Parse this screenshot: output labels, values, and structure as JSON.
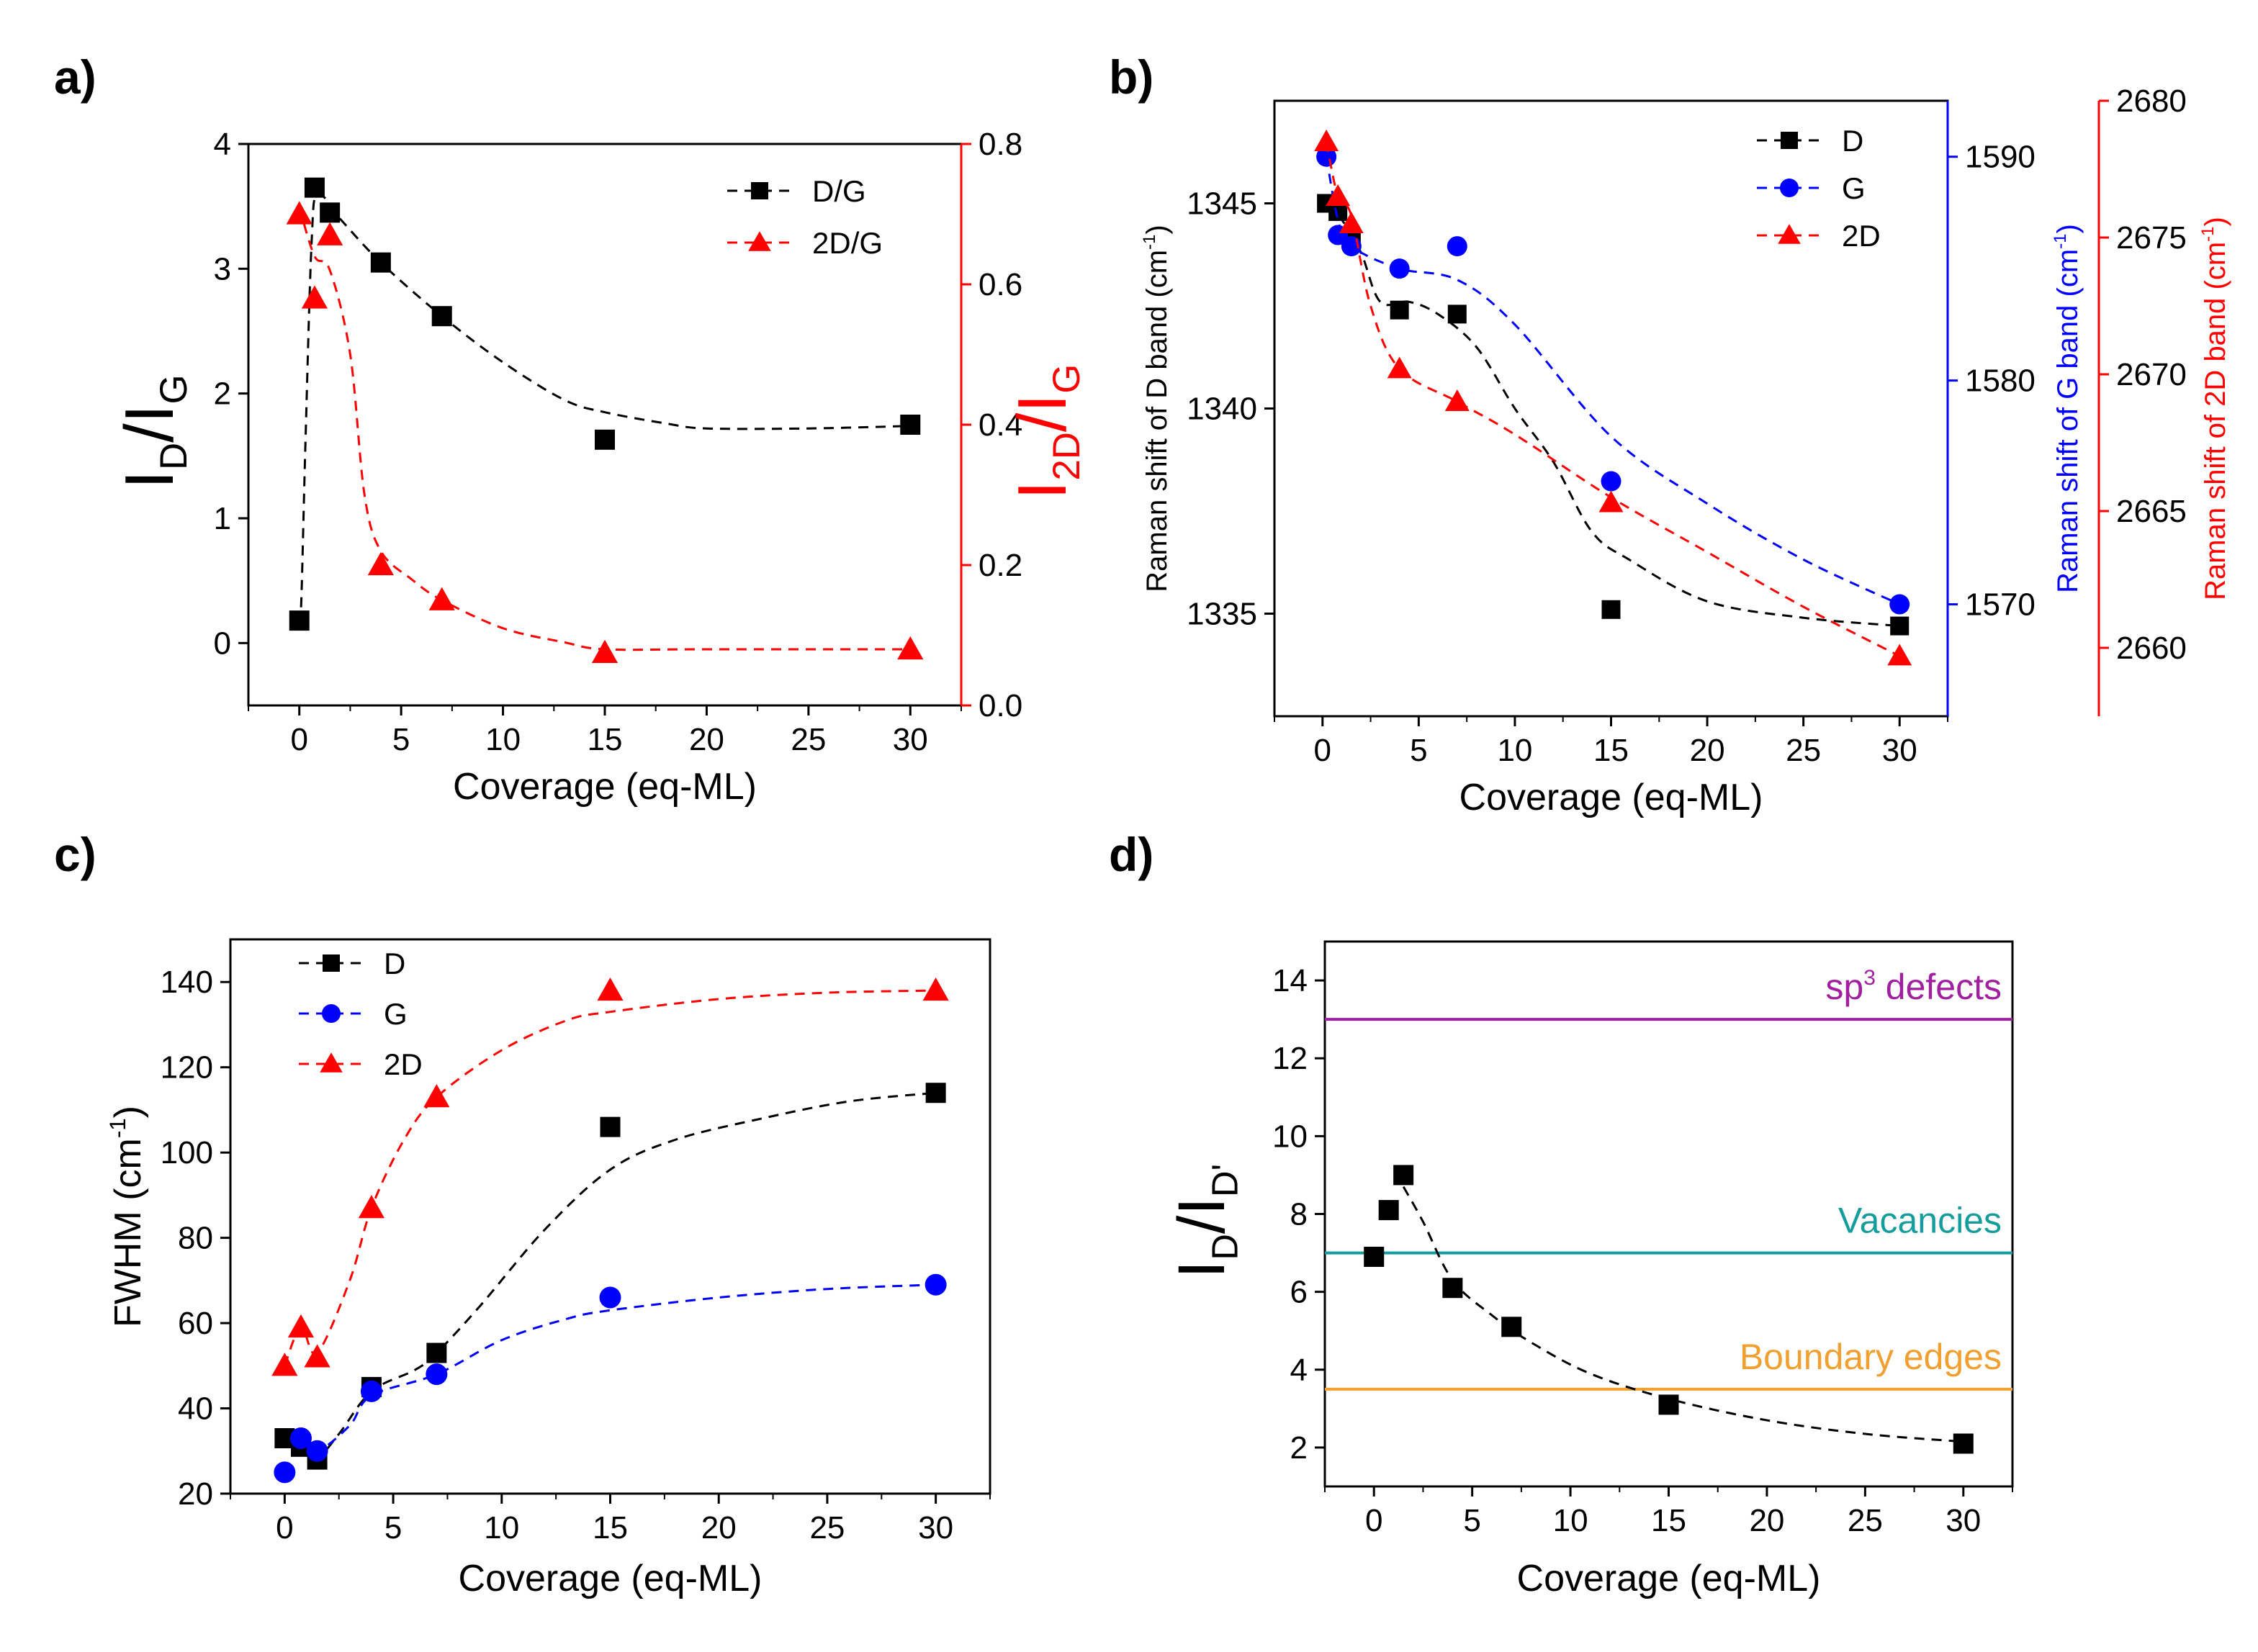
{
  "chart_data": [
    {
      "panel": "a)",
      "type": "scatter",
      "xlabel": "Coverage (eq-ML)",
      "xlim": [
        -2.5,
        32.5
      ],
      "xticks": [
        0,
        5,
        10,
        15,
        20,
        25,
        30
      ],
      "ylabel": {
        "main": "I",
        "sub1": "D",
        "mid": "/I",
        "sub2": "G"
      },
      "ylim": [
        -0.5,
        4.0
      ],
      "yticks": [
        "0",
        "1",
        "2",
        "3",
        "4"
      ],
      "y2label": {
        "main": "I",
        "sub1": "2D",
        "mid": "/I",
        "sub2": "G"
      },
      "y2lim": [
        0.0,
        0.8
      ],
      "y2ticks": [
        "0.0",
        "0.2",
        "0.4",
        "0.6",
        "0.8"
      ],
      "legend_position": "top-right",
      "series": [
        {
          "name": "D/G",
          "axis": "left",
          "color": "#000000",
          "marker": "square",
          "points": [
            [
              0,
              0.18
            ],
            [
              0.75,
              3.65
            ],
            [
              1.5,
              3.45
            ],
            [
              4,
              3.05
            ],
            [
              7,
              2.62
            ],
            [
              15,
              1.63
            ],
            [
              30,
              1.75
            ]
          ],
          "fit": [
            [
              0,
              0.15
            ],
            [
              0.1,
              0.35
            ],
            [
              0.3,
              1.6
            ],
            [
              0.6,
              3.2
            ],
            [
              0.9,
              3.6
            ],
            [
              2,
              3.4
            ],
            [
              4,
              3.05
            ],
            [
              7,
              2.62
            ],
            [
              10,
              2.25
            ],
            [
              13,
              1.95
            ],
            [
              15,
              1.85
            ],
            [
              18,
              1.76
            ],
            [
              20,
              1.72
            ],
            [
              25,
              1.72
            ],
            [
              30,
              1.74
            ]
          ]
        },
        {
          "name": "2D/G",
          "axis": "right",
          "color": "#ff0000",
          "marker": "triangle",
          "points": [
            [
              0,
              0.7
            ],
            [
              0.75,
              0.58
            ],
            [
              1.5,
              0.67
            ],
            [
              4,
              0.2
            ],
            [
              7,
              0.15
            ],
            [
              15,
              0.075
            ],
            [
              30,
              0.08
            ]
          ],
          "fit": [
            [
              0,
              0.71
            ],
            [
              0.75,
              0.64
            ],
            [
              1.5,
              0.62
            ],
            [
              2.5,
              0.5
            ],
            [
              3.2,
              0.3
            ],
            [
              4,
              0.22
            ],
            [
              5.5,
              0.18
            ],
            [
              7,
              0.15
            ],
            [
              10,
              0.11
            ],
            [
              13,
              0.09
            ],
            [
              15,
              0.08
            ],
            [
              20,
              0.08
            ],
            [
              30,
              0.08
            ]
          ]
        }
      ]
    },
    {
      "panel": "b)",
      "type": "scatter",
      "xlabel": "Coverage (eq-ML)",
      "xlim": [
        -2.5,
        32.5
      ],
      "xticks": [
        0,
        5,
        10,
        15,
        20,
        25,
        30
      ],
      "ylabel": "Raman shift of D band (cm",
      "ylim": [
        1332.5,
        1347.5
      ],
      "yticks": [
        "1335",
        "1340",
        "1345"
      ],
      "y2label": "Raman shift of G band (cm",
      "y2lim": [
        1565,
        1592.5
      ],
      "y2ticks": [
        "1570",
        "1580",
        "1590"
      ],
      "y3label": "Raman shift of 2D band (cm",
      "y3lim": [
        2657.5,
        2680
      ],
      "y3ticks": [
        "2660",
        "2665",
        "2670",
        "2675",
        "2680"
      ],
      "unit_sup": "-1",
      "label_close": ")",
      "legend_position": "top-right",
      "series": [
        {
          "name": "D",
          "axis": "left",
          "color": "#000000",
          "marker": "square",
          "points": [
            [
              0.2,
              1345.0
            ],
            [
              0.8,
              1344.8
            ],
            [
              1.5,
              1344.1
            ],
            [
              4,
              1342.4
            ],
            [
              7,
              1342.3
            ],
            [
              15,
              1335.1
            ],
            [
              30,
              1334.7
            ]
          ],
          "fit": [
            [
              0.2,
              1345.0
            ],
            [
              1,
              1344.6
            ],
            [
              2,
              1343.8
            ],
            [
              3,
              1342.6
            ],
            [
              4.5,
              1342.6
            ],
            [
              6,
              1342.3
            ],
            [
              8,
              1341.5
            ],
            [
              10,
              1340.0
            ],
            [
              12,
              1338.7
            ],
            [
              14,
              1337.0
            ],
            [
              16,
              1336.3
            ],
            [
              20,
              1335.3
            ],
            [
              25,
              1334.9
            ],
            [
              30,
              1334.7
            ]
          ]
        },
        {
          "name": "G",
          "axis": "right",
          "color": "#0000ff",
          "marker": "circle",
          "points": [
            [
              0.2,
              1590.0
            ],
            [
              0.8,
              1586.5
            ],
            [
              1.5,
              1586.0
            ],
            [
              4,
              1585.0
            ],
            [
              7,
              1586.0
            ],
            [
              15,
              1575.5
            ],
            [
              30,
              1570.0
            ]
          ],
          "fit": [
            [
              0.2,
              1590.0
            ],
            [
              0.8,
              1587.2
            ],
            [
              1.5,
              1586.0
            ],
            [
              4,
              1585.0
            ],
            [
              7,
              1584.5
            ],
            [
              10,
              1582.5
            ],
            [
              15,
              1577.5
            ],
            [
              20,
              1574.5
            ],
            [
              25,
              1572.0
            ],
            [
              30,
              1570.0
            ]
          ]
        },
        {
          "name": "2D",
          "axis": "third",
          "color": "#ff0000",
          "marker": "triangle",
          "points": [
            [
              0.2,
              2678.5
            ],
            [
              0.8,
              2676.5
            ],
            [
              1.5,
              2675.5
            ],
            [
              4,
              2670.2
            ],
            [
              7,
              2669.0
            ],
            [
              15,
              2665.3
            ],
            [
              30,
              2659.7
            ]
          ],
          "fit": [
            [
              0.2,
              2678.5
            ],
            [
              0.8,
              2676.5
            ],
            [
              1.5,
              2675.8
            ],
            [
              2.5,
              2672.5
            ],
            [
              4,
              2670.2
            ],
            [
              7,
              2669.0
            ],
            [
              10,
              2667.8
            ],
            [
              15,
              2665.5
            ],
            [
              20,
              2663.5
            ],
            [
              25,
              2661.5
            ],
            [
              30,
              2659.7
            ]
          ]
        }
      ]
    },
    {
      "panel": "c)",
      "type": "scatter",
      "xlabel": "Coverage (eq-ML)",
      "xlim": [
        -2.5,
        32.5
      ],
      "xticks": [
        0,
        5,
        10,
        15,
        20,
        25,
        30
      ],
      "ylabel": "FWHM (cm",
      "unit_sup": "-1",
      "label_close": ")",
      "ylim": [
        20,
        150
      ],
      "yticks": [
        "20",
        "40",
        "60",
        "80",
        "100",
        "120",
        "140"
      ],
      "legend_position": "top-left",
      "series": [
        {
          "name": "D",
          "color": "#000000",
          "marker": "square",
          "points": [
            [
              0,
              33
            ],
            [
              0.75,
              31
            ],
            [
              1.5,
              28
            ],
            [
              4,
              45
            ],
            [
              7,
              53
            ],
            [
              15,
              106
            ],
            [
              30,
              114
            ]
          ],
          "fit": [
            [
              0,
              33
            ],
            [
              0.75,
              31
            ],
            [
              1.5,
              28.5
            ],
            [
              2.5,
              34
            ],
            [
              4,
              44
            ],
            [
              6,
              49
            ],
            [
              7,
              53
            ],
            [
              9,
              64
            ],
            [
              12,
              82
            ],
            [
              15,
              96
            ],
            [
              18,
              103
            ],
            [
              22,
              108
            ],
            [
              26,
              112
            ],
            [
              30,
              114
            ]
          ]
        },
        {
          "name": "G",
          "color": "#0000ff",
          "marker": "circle",
          "points": [
            [
              0,
              25
            ],
            [
              0.75,
              33
            ],
            [
              1.5,
              30
            ],
            [
              4,
              44
            ],
            [
              7,
              48
            ],
            [
              15,
              66
            ],
            [
              30,
              69
            ]
          ],
          "fit": [
            [
              0.75,
              33
            ],
            [
              1.5,
              30
            ],
            [
              3,
              36
            ],
            [
              4,
              43
            ],
            [
              7,
              48
            ],
            [
              10,
              56
            ],
            [
              13,
              61
            ],
            [
              15,
              63
            ],
            [
              20,
              66
            ],
            [
              25,
              68
            ],
            [
              30,
              69
            ]
          ]
        },
        {
          "name": "2D",
          "color": "#ff0000",
          "marker": "triangle",
          "points": [
            [
              0,
              50
            ],
            [
              0.75,
              59
            ],
            [
              1.5,
              52
            ],
            [
              4,
              87
            ],
            [
              7,
              113
            ],
            [
              15,
              138
            ],
            [
              30,
              138
            ]
          ],
          "fit": [
            [
              0,
              50
            ],
            [
              0.75,
              59
            ],
            [
              1.5,
              53
            ],
            [
              3,
              70
            ],
            [
              4,
              87
            ],
            [
              5.5,
              103
            ],
            [
              7,
              113
            ],
            [
              10,
              124
            ],
            [
              13,
              131
            ],
            [
              15,
              133
            ],
            [
              20,
              136
            ],
            [
              25,
              137.5
            ],
            [
              30,
              138
            ]
          ]
        }
      ]
    },
    {
      "panel": "d)",
      "type": "scatter",
      "xlabel": "Coverage (eq-ML)",
      "xlim": [
        -2.5,
        32.5
      ],
      "xticks": [
        0,
        5,
        10,
        15,
        20,
        25,
        30
      ],
      "ylabel": {
        "main": "I",
        "sub1": "D",
        "mid": "/I",
        "sub2": "D'"
      },
      "ylim": [
        1.0,
        15.0
      ],
      "yticks": [
        "2",
        "4",
        "6",
        "8",
        "10",
        "12",
        "14"
      ],
      "reference_lines": [
        {
          "label": "sp",
          "sup": "3",
          "suffix": " defects",
          "y": 13.0,
          "color": "#a020a0"
        },
        {
          "label": "Vacancies",
          "sup": "",
          "suffix": "",
          "y": 7.0,
          "color": "#159d9d"
        },
        {
          "label": "Boundary edges",
          "sup": "",
          "suffix": "",
          "y": 3.5,
          "color": "#f0a030"
        }
      ],
      "series": [
        {
          "name": "ID/ID'",
          "color": "#000000",
          "marker": "square",
          "points": [
            [
              0,
              6.9
            ],
            [
              0.75,
              8.1
            ],
            [
              1.5,
              9.0
            ],
            [
              4,
              6.1
            ],
            [
              7,
              5.1
            ],
            [
              15,
              3.1
            ],
            [
              30,
              2.1
            ]
          ],
          "fit": [
            [
              1.5,
              8.7
            ],
            [
              2.5,
              7.8
            ],
            [
              4,
              6.3
            ],
            [
              6,
              5.4
            ],
            [
              8,
              4.7
            ],
            [
              11,
              3.9
            ],
            [
              15,
              3.25
            ],
            [
              20,
              2.7
            ],
            [
              25,
              2.35
            ],
            [
              30,
              2.15
            ]
          ]
        }
      ]
    }
  ]
}
